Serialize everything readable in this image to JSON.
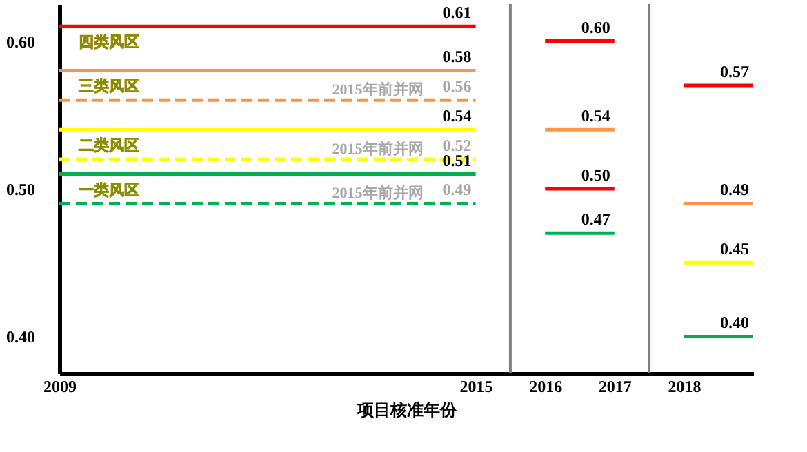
{
  "chart_data": {
    "type": "step",
    "xlabel": "项目核准年份",
    "xlim": [
      2009,
      2019
    ],
    "xticks": [
      2009,
      2015,
      2016,
      2017,
      2018
    ],
    "ylim": [
      0.375,
      0.625
    ],
    "yticks": [
      {
        "value": 0.4,
        "label": "0.40"
      },
      {
        "value": 0.5,
        "label": "0.50"
      },
      {
        "value": 0.6,
        "label": "0.60"
      }
    ],
    "ref_lines": [
      {
        "axis": "x",
        "value": 2015.5,
        "color": "#808080"
      },
      {
        "axis": "x",
        "value": 2017.5,
        "color": "#808080"
      }
    ],
    "series": [
      {
        "name": "四类风区",
        "color": "#ff0000",
        "x": [
          2009,
          2015
        ],
        "values": [
          0.61,
          0.61
        ],
        "value_labels": [
          null,
          "0.61"
        ]
      },
      {
        "name": "三类风区",
        "color": "#f79646",
        "x": [
          2009,
          2015
        ],
        "values": [
          0.58,
          0.58
        ],
        "value_labels": [
          null,
          "0.58"
        ]
      },
      {
        "name": "2015年前并网",
        "color": "#f79646",
        "line_style": "dashed",
        "x": [
          2009,
          2015
        ],
        "values": [
          0.56,
          0.56
        ],
        "value_labels": [
          null,
          "0.56"
        ]
      },
      {
        "name": "二类风区",
        "color": "#ffff00",
        "x": [
          2009,
          2015
        ],
        "values": [
          0.54,
          0.54
        ],
        "value_labels": [
          null,
          "0.54"
        ]
      },
      {
        "name": "2015年前并网",
        "color": "#ffff00",
        "line_style": "dashed",
        "x": [
          2009,
          2015
        ],
        "values": [
          0.52,
          0.52
        ],
        "value_labels": [
          null,
          "0.52"
        ]
      },
      {
        "name": "一类风区",
        "color": "#00b050",
        "x": [
          2009,
          2015
        ],
        "values": [
          0.51,
          0.51
        ],
        "value_labels": [
          null,
          "0.51"
        ]
      },
      {
        "name": "2015年前并网",
        "color": "#00b050",
        "line_style": "dashed",
        "x": [
          2009,
          2015
        ],
        "values": [
          0.49,
          0.49
        ],
        "value_labels": [
          null,
          "0.49"
        ]
      },
      {
        "color": "#ff0000",
        "x": [
          2016,
          2017
        ],
        "values": [
          0.6,
          0.6
        ],
        "value_labels": [
          null,
          "0.60"
        ]
      },
      {
        "color": "#f79646",
        "x": [
          2016,
          2017
        ],
        "values": [
          0.54,
          0.54
        ],
        "value_labels": [
          null,
          "0.54"
        ]
      },
      {
        "color": "#ff0000",
        "x": [
          2016,
          2017
        ],
        "values": [
          0.5,
          0.5
        ],
        "value_labels": [
          null,
          "0.50"
        ]
      },
      {
        "color": "#00b050",
        "x": [
          2016,
          2017
        ],
        "values": [
          0.47,
          0.47
        ],
        "value_labels": [
          null,
          "0.47"
        ]
      },
      {
        "color": "#ff0000",
        "x": [
          2018,
          2019
        ],
        "values": [
          0.57,
          0.57
        ],
        "value_labels": [
          null,
          "0.57"
        ]
      },
      {
        "color": "#f79646",
        "x": [
          2018,
          2019
        ],
        "values": [
          0.49,
          0.49
        ],
        "value_labels": [
          null,
          "0.49"
        ]
      },
      {
        "color": "#ffff00",
        "x": [
          2018,
          2019
        ],
        "values": [
          0.45,
          0.45
        ],
        "value_labels": [
          null,
          "0.45"
        ]
      },
      {
        "color": "#00b050",
        "x": [
          2018,
          2019
        ],
        "values": [
          0.4,
          0.4
        ],
        "value_labels": [
          null,
          "0.40"
        ]
      }
    ]
  }
}
